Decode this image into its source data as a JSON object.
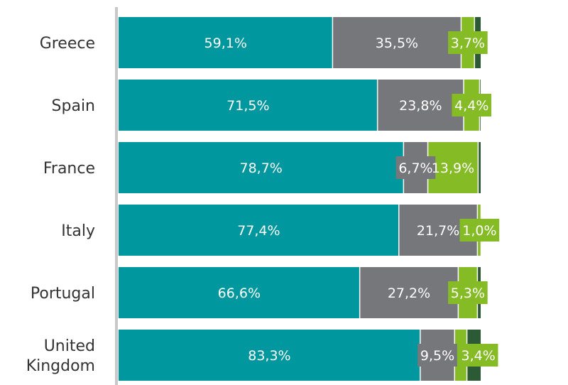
{
  "chart_data": {
    "type": "bar",
    "orientation": "horizontal",
    "stacked": true,
    "categories": [
      "Greece",
      "Spain",
      "France",
      "Italy",
      "Portugal",
      "United Kingdom"
    ],
    "category_lines": [
      [
        "Greece"
      ],
      [
        "Spain"
      ],
      [
        "France"
      ],
      [
        "Italy"
      ],
      [
        "Portugal"
      ],
      [
        "United",
        "Kingdom"
      ]
    ],
    "series": [
      {
        "color": "#00979e",
        "values": [
          59.1,
          71.5,
          78.7,
          77.4,
          66.6,
          83.3
        ],
        "labels": [
          "59,1%",
          "71,5%",
          "78,7%",
          "77,4%",
          "66,6%",
          "83,3%"
        ]
      },
      {
        "color": "#76777a",
        "values": [
          35.5,
          23.8,
          6.7,
          21.7,
          27.2,
          9.5
        ],
        "labels": [
          "35,5%",
          "23,8%",
          "6,7%",
          "21,7%",
          "27,2%",
          "9,5%"
        ]
      },
      {
        "color": "#85bc25",
        "values": [
          3.7,
          4.4,
          13.9,
          1.0,
          5.3,
          3.4
        ],
        "labels": [
          "3,7%",
          "4,4%",
          "13,9%",
          "1,0%",
          "5,3%",
          "3,4%"
        ]
      },
      {
        "color": "#2b5a34",
        "values": [
          1.7,
          0.3,
          0.7,
          0.0,
          0.9,
          3.8
        ],
        "labels": [
          "",
          "",
          "",
          "",
          "",
          ""
        ]
      }
    ],
    "xlim": [
      0,
      100
    ],
    "legend": "none",
    "grid": false
  }
}
